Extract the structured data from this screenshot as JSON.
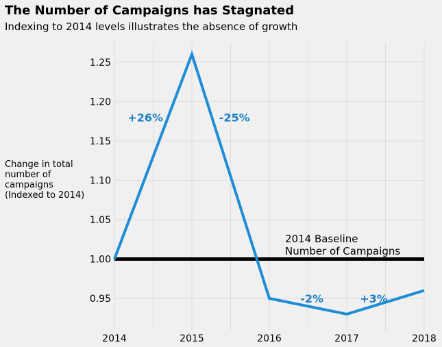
{
  "title": "The Number of Campaigns has Stagnated",
  "subtitle": "Indexing to 2014 levels illustrates the absence of growth",
  "ylabel_lines": [
    "Change in total",
    "number of",
    "campaigns",
    "(Indexed to 2014)"
  ],
  "colors": {
    "line": "#1f8dd6",
    "annotation": "#1a80c4",
    "baseline": "#000000",
    "grid": "#dcdcdc",
    "background": "#f0f0f0"
  },
  "chart_data": {
    "type": "line",
    "x": [
      2014,
      2015,
      2016,
      2017,
      2018
    ],
    "series": [
      {
        "values": [
          1.0,
          1.26,
          0.95,
          0.93,
          0.96
        ]
      }
    ],
    "baseline": {
      "y": 1.0,
      "label_lines": [
        "2014 Baseline",
        "Number of Campaigns"
      ]
    },
    "annotations": [
      {
        "text": "+26%",
        "x": 2014.4,
        "y": 1.18
      },
      {
        "text": "-25%",
        "x": 2015.55,
        "y": 1.18
      },
      {
        "text": "-2%",
        "x": 2016.55,
        "y": 0.95
      },
      {
        "text": "+3%",
        "x": 2017.35,
        "y": 0.95
      }
    ],
    "xticks": [
      "2014",
      "2015",
      "2016",
      "2017",
      "2018"
    ],
    "yticks": [
      "0.95",
      "1.00",
      "1.05",
      "1.10",
      "1.15",
      "1.20",
      "1.25"
    ],
    "xlim": [
      2014,
      2018
    ],
    "ylim": [
      0.91,
      1.275
    ],
    "grid": true
  }
}
